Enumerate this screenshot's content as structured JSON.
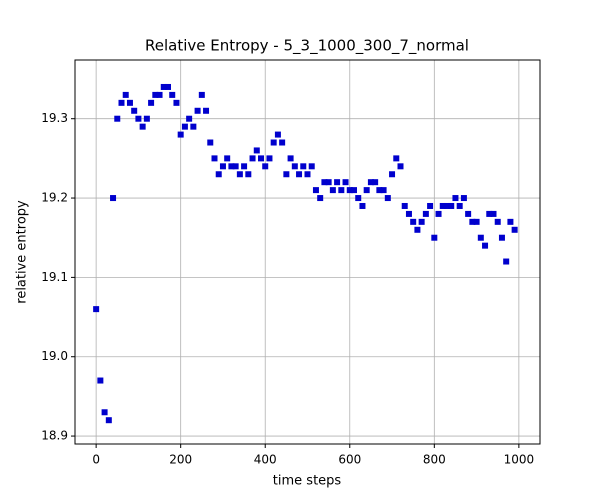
{
  "chart_data": {
    "type": "scatter",
    "title": "Relative Entropy - 5_3_1000_300_7_normal",
    "x_label": "time steps",
    "y_label": "relative entropy",
    "x": [
      0,
      10,
      20,
      30,
      40,
      50,
      60,
      70,
      80,
      90,
      100,
      110,
      120,
      130,
      140,
      150,
      160,
      170,
      180,
      190,
      200,
      210,
      220,
      230,
      240,
      250,
      260,
      270,
      280,
      290,
      300,
      310,
      320,
      330,
      340,
      350,
      360,
      370,
      380,
      390,
      400,
      410,
      420,
      430,
      440,
      450,
      460,
      470,
      480,
      490,
      500,
      510,
      520,
      530,
      540,
      550,
      560,
      570,
      580,
      590,
      600,
      610,
      620,
      630,
      640,
      650,
      660,
      670,
      680,
      690,
      700,
      710,
      720,
      730,
      740,
      750,
      760,
      770,
      780,
      790,
      800,
      810,
      820,
      830,
      840,
      850,
      860,
      870,
      880,
      890,
      900,
      910,
      920,
      930,
      940,
      950,
      960,
      970,
      980,
      990
    ],
    "values": [
      19.06,
      18.97,
      18.93,
      18.92,
      19.2,
      19.3,
      19.32,
      19.33,
      19.32,
      19.31,
      19.3,
      19.29,
      19.3,
      19.32,
      19.33,
      19.33,
      19.34,
      19.34,
      19.33,
      19.32,
      19.28,
      19.29,
      19.3,
      19.29,
      19.31,
      19.33,
      19.31,
      19.27,
      19.25,
      19.23,
      19.24,
      19.25,
      19.24,
      19.24,
      19.23,
      19.24,
      19.23,
      19.25,
      19.26,
      19.25,
      19.24,
      19.25,
      19.27,
      19.28,
      19.27,
      19.23,
      19.25,
      19.24,
      19.23,
      19.24,
      19.23,
      19.24,
      19.21,
      19.2,
      19.22,
      19.22,
      19.21,
      19.22,
      19.21,
      19.22,
      19.21,
      19.21,
      19.2,
      19.19,
      19.21,
      19.22,
      19.22,
      19.21,
      19.21,
      19.2,
      19.23,
      19.25,
      19.24,
      19.19,
      19.18,
      19.17,
      19.16,
      19.17,
      19.18,
      19.19,
      19.15,
      19.18,
      19.19,
      19.19,
      19.19,
      19.2,
      19.19,
      19.2,
      19.18,
      19.17,
      19.17,
      19.15,
      19.14,
      19.18,
      19.18,
      19.17,
      19.15,
      19.12,
      19.17,
      19.16
    ],
    "color": "#0000cd",
    "xlim": [
      -50,
      1050
    ],
    "xticks": [
      0,
      200,
      400,
      600,
      800,
      1000
    ],
    "ylim": [
      18.89,
      19.374
    ],
    "yticks": [
      18.9,
      {
        "value": 19.0,
        "label": "19.0"
      },
      19.1,
      19.2,
      19.3
    ],
    "grid": true
  }
}
